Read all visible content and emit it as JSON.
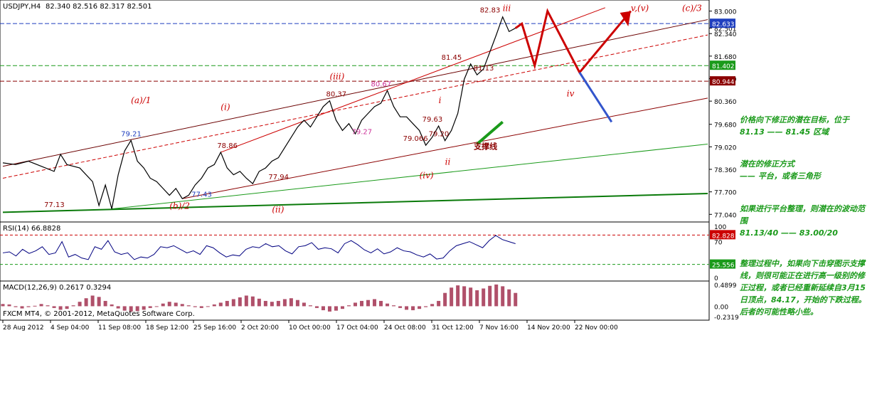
{
  "header": {
    "symbol": "USDJPY,H4",
    "ohlc": "82.340 82.516 82.317 82.501",
    "rsi_title": "RSI(14) 66.8828",
    "macd_title": "MACD(12,26,9) 0.2617 0.3294",
    "copyright": "FXCM MT4, © 2001-2012, MetaQuotes Software Corp."
  },
  "colors": {
    "price_line": "#000000",
    "up_red": "#cc0000",
    "down_blue": "#3355cc",
    "support_green": "#1a9a1a",
    "rsi_line": "#000080",
    "macd_hist": "#b0506a"
  },
  "chart_data": [
    {
      "type": "line",
      "name_on_chart": "USDJPY,H4",
      "ylim": [
        76.9,
        83.2
      ],
      "y_ticks": [
        "83.000",
        "82.501",
        "82.340",
        "81.680",
        "81.020",
        "80.360",
        "79.680",
        "79.020",
        "78.360",
        "77.700",
        "77.040"
      ],
      "x_ticks": [
        "28 Aug 2012",
        "4 Sep 04:00",
        "11 Sep 08:00",
        "18 Sep 12:00",
        "25 Sep 16:00",
        "2 Oct 20:00",
        "10 Oct 00:00",
        "17 Oct 04:00",
        "24 Oct 08:00",
        "31 Oct 12:00",
        "7 Nov 16:00",
        "14 Nov 20:00",
        "22 Nov 00:00"
      ],
      "price_tags": [
        {
          "label": "82.633",
          "value": 82.633,
          "color": "#1f3fbf"
        },
        {
          "label": "81.402",
          "value": 81.402,
          "color": "#1a9a1a"
        },
        {
          "label": "80.944",
          "value": 80.944,
          "color": "#8b0000"
        }
      ],
      "series_xy": [
        [
          0,
          78.55
        ],
        [
          2,
          78.5
        ],
        [
          4,
          78.6
        ],
        [
          6,
          78.45
        ],
        [
          8,
          78.3
        ],
        [
          9,
          78.8
        ],
        [
          10,
          78.5
        ],
        [
          12,
          78.4
        ],
        [
          14,
          78.0
        ],
        [
          15,
          77.3
        ],
        [
          16,
          77.9
        ],
        [
          17,
          77.2
        ],
        [
          18,
          78.2
        ],
        [
          19,
          78.9
        ],
        [
          20,
          79.21
        ],
        [
          21,
          78.6
        ],
        [
          22,
          78.4
        ],
        [
          23,
          78.1
        ],
        [
          24,
          78.0
        ],
        [
          25,
          77.8
        ],
        [
          26,
          77.6
        ],
        [
          27,
          77.8
        ],
        [
          28,
          77.5
        ],
        [
          29,
          77.6
        ],
        [
          30,
          77.9
        ],
        [
          31,
          78.1
        ],
        [
          32,
          78.4
        ],
        [
          33,
          78.5
        ],
        [
          34,
          78.86
        ],
        [
          35,
          78.4
        ],
        [
          36,
          78.2
        ],
        [
          37,
          78.3
        ],
        [
          38,
          78.1
        ],
        [
          39,
          77.94
        ],
        [
          40,
          78.3
        ],
        [
          41,
          78.4
        ],
        [
          42,
          78.6
        ],
        [
          43,
          78.7
        ],
        [
          44,
          79.0
        ],
        [
          45,
          79.3
        ],
        [
          46,
          79.6
        ],
        [
          47,
          79.8
        ],
        [
          48,
          79.6
        ],
        [
          49,
          79.9
        ],
        [
          50,
          80.2
        ],
        [
          51,
          80.37
        ],
        [
          52,
          79.8
        ],
        [
          53,
          79.5
        ],
        [
          54,
          79.7
        ],
        [
          55,
          79.4
        ],
        [
          56,
          79.8
        ],
        [
          57,
          80.0
        ],
        [
          58,
          80.2
        ],
        [
          59,
          80.3
        ],
        [
          60,
          80.67
        ],
        [
          61,
          80.2
        ],
        [
          62,
          79.9
        ],
        [
          63,
          79.9
        ],
        [
          64,
          79.7
        ],
        [
          65,
          79.5
        ],
        [
          66,
          79.066
        ],
        [
          67,
          79.3
        ],
        [
          68,
          79.63
        ],
        [
          69,
          79.2
        ],
        [
          70,
          79.5
        ],
        [
          71,
          80.0
        ],
        [
          72,
          81.0
        ],
        [
          73,
          81.45
        ],
        [
          74,
          81.13
        ],
        [
          75,
          81.3
        ],
        [
          76,
          81.8
        ],
        [
          77,
          82.3
        ],
        [
          78,
          82.83
        ],
        [
          79,
          82.4
        ],
        [
          80,
          82.5
        ]
      ],
      "wave_labels": [
        {
          "text": "(a)/1",
          "x": 20,
          "y": 80.3
        },
        {
          "text": "(i)",
          "x": 34,
          "y": 80.1
        },
        {
          "text": "(iii)",
          "x": 51,
          "y": 81.0
        },
        {
          "text": "(b)/2",
          "x": 26,
          "y": 77.2
        },
        {
          "text": "(ii)",
          "x": 42,
          "y": 77.1
        },
        {
          "text": "(iv)",
          "x": 65,
          "y": 78.1
        },
        {
          "text": "iii",
          "x": 78,
          "y": 83.0
        },
        {
          "text": "i",
          "x": 68,
          "y": 80.3
        },
        {
          "text": "ii",
          "x": 69,
          "y": 78.5
        },
        {
          "text": "iv",
          "x": 88,
          "y": 80.5
        },
        {
          "text": "v,(v)",
          "x": 98,
          "y": 83.0
        },
        {
          "text": "(c)/3",
          "x": 106,
          "y": 83.0
        }
      ],
      "value_labels": [
        {
          "text": "79.21",
          "x": 20,
          "y": 79.21
        },
        {
          "text": "77.13",
          "x": 8,
          "y": 77.13
        },
        {
          "text": "77.43",
          "x": 31,
          "y": 77.43
        },
        {
          "text": "78.86",
          "x": 35,
          "y": 78.86
        },
        {
          "text": "77.94",
          "x": 43,
          "y": 77.94
        },
        {
          "text": "80.37",
          "x": 52,
          "y": 80.37
        },
        {
          "text": "80.67",
          "x": 59,
          "y": 80.67
        },
        {
          "text": "79.27",
          "x": 56,
          "y": 79.27
        },
        {
          "text": "79.63",
          "x": 67,
          "y": 79.63
        },
        {
          "text": "79.20",
          "x": 68,
          "y": 79.2
        },
        {
          "text": "79.066",
          "x": 64,
          "y": 79.066
        },
        {
          "text": "81.45",
          "x": 70,
          "y": 81.45
        },
        {
          "text": "81.13",
          "x": 75,
          "y": 81.13
        },
        {
          "text": "82.83",
          "x": 76,
          "y": 82.83
        }
      ],
      "support_label": "支撑线"
    },
    {
      "type": "line",
      "name_on_chart": "RSI(14) 66.8828",
      "ylim": [
        0,
        100
      ],
      "y_ticks": [
        "100",
        "70",
        "0"
      ],
      "levels": [
        {
          "label": "82.828",
          "value": 82.828
        },
        {
          "label": "25.556",
          "value": 25.556
        }
      ],
      "values": [
        48,
        50,
        42,
        55,
        47,
        52,
        60,
        45,
        48,
        70,
        40,
        45,
        38,
        35,
        60,
        55,
        72,
        50,
        45,
        48,
        35,
        40,
        38,
        45,
        60,
        58,
        62,
        55,
        48,
        52,
        45,
        62,
        58,
        48,
        40,
        44,
        42,
        55,
        60,
        58,
        66,
        60,
        62,
        52,
        46,
        60,
        62,
        68,
        55,
        58,
        56,
        48,
        66,
        72,
        64,
        54,
        48,
        56,
        46,
        50,
        58,
        52,
        50,
        44,
        40,
        46,
        36,
        38,
        52,
        62,
        66,
        70,
        64,
        58,
        72,
        82,
        74,
        70,
        66
      ]
    },
    {
      "type": "bar",
      "name_on_chart": "MACD(12,26,9) 0.2617 0.3294",
      "ylim": [
        -0.25,
        0.52
      ],
      "y_ticks": [
        "0.4899",
        "0.00",
        "-0.2319"
      ],
      "values": [
        0.05,
        0.04,
        -0.02,
        -0.05,
        -0.02,
        0.01,
        0.05,
        0.02,
        -0.04,
        -0.08,
        -0.06,
        0.02,
        0.1,
        0.18,
        0.24,
        0.21,
        0.12,
        0.04,
        -0.05,
        -0.1,
        -0.12,
        -0.11,
        -0.08,
        -0.04,
        0.0,
        0.06,
        0.1,
        0.08,
        0.05,
        0.02,
        -0.02,
        -0.04,
        -0.01,
        0.04,
        0.08,
        0.12,
        0.16,
        0.2,
        0.24,
        0.22,
        0.17,
        0.12,
        0.1,
        0.12,
        0.16,
        0.18,
        0.14,
        0.08,
        0.02,
        -0.04,
        -0.09,
        -0.12,
        -0.1,
        -0.06,
        0.02,
        0.08,
        0.12,
        0.14,
        0.16,
        0.12,
        0.06,
        0.02,
        -0.04,
        -0.08,
        -0.09,
        -0.06,
        -0.02,
        0.05,
        0.12,
        0.3,
        0.42,
        0.47,
        0.45,
        0.42,
        0.36,
        0.4,
        0.46,
        0.49,
        0.45,
        0.38,
        0.3
      ]
    }
  ],
  "notes": {
    "p1": "价格向下修正的潜在目标，位于",
    "p1b": "81.13 —— 81.45 区域",
    "p2": "潜在的修正方式",
    "p2b": "—— 平台，或者三角形",
    "p3": "如果进行平台整理，则潜在的波动范围",
    "p3b": "81.13/40 —— 83.00/20",
    "p4": "整理过程中，如果向下击穿图示支撑线，则很可能正在进行高一级别的修正过程，或者已经重新延续自3月15日顶点，84.17，开始的下跌过程。",
    "p4b": "后者的可能性略小些。"
  }
}
